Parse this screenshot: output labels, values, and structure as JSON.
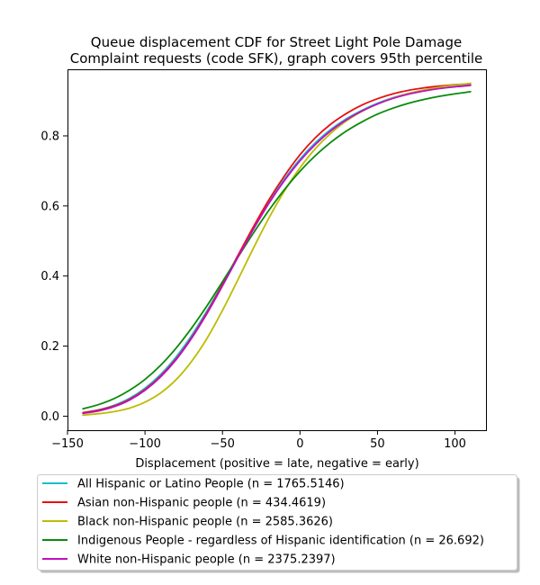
{
  "chart_data": {
    "type": "line",
    "title_lines": [
      "Queue displacement CDF for Street Light Pole Damage",
      "Complaint  requests (code SFK), graph covers 95th percentile"
    ],
    "xlabel": "Displacement (positive = late, negative = early)",
    "ylabel": "",
    "xlim": [
      -150,
      120
    ],
    "ylim": [
      -0.04,
      0.99
    ],
    "xticks": [
      -150,
      -100,
      -50,
      0,
      50,
      100
    ],
    "xtick_labels": [
      "−150",
      "−100",
      "−50",
      "0",
      "50",
      "100"
    ],
    "yticks": [
      0.0,
      0.2,
      0.4,
      0.6,
      0.8
    ],
    "ytick_labels": [
      "0.0",
      "0.2",
      "0.4",
      "0.6",
      "0.8"
    ],
    "grid": false,
    "legend_position": "below",
    "series": [
      {
        "name": "All Hispanic or Latino People (n = 1765.5146)",
        "color": "#17becf",
        "x": [
          -140,
          -130,
          -120,
          -110,
          -100,
          -90,
          -80,
          -70,
          -60,
          -50,
          -40,
          -30,
          -20,
          -10,
          0,
          10,
          20,
          30,
          40,
          50,
          60,
          70,
          80,
          90,
          100,
          110
        ],
        "y": [
          0.01,
          0.018,
          0.031,
          0.051,
          0.08,
          0.119,
          0.169,
          0.23,
          0.301,
          0.378,
          0.458,
          0.537,
          0.611,
          0.677,
          0.734,
          0.781,
          0.819,
          0.849,
          0.873,
          0.893,
          0.909,
          0.921,
          0.93,
          0.937,
          0.942,
          0.946
        ]
      },
      {
        "name": "Asian non-Hispanic people (n = 434.4619)",
        "color": "#e8100f",
        "x": [
          -140,
          -130,
          -120,
          -110,
          -100,
          -90,
          -80,
          -70,
          -60,
          -50,
          -40,
          -30,
          -20,
          -10,
          0,
          10,
          20,
          30,
          40,
          50,
          60,
          70,
          80,
          90,
          100,
          110
        ],
        "y": [
          0.01,
          0.017,
          0.029,
          0.048,
          0.076,
          0.114,
          0.163,
          0.224,
          0.296,
          0.376,
          0.459,
          0.541,
          0.618,
          0.686,
          0.746,
          0.795,
          0.834,
          0.864,
          0.888,
          0.906,
          0.92,
          0.93,
          0.937,
          0.942,
          0.946,
          0.949
        ]
      },
      {
        "name": "Black non-Hispanic people (n = 2585.3626)",
        "color": "#bcbd00",
        "x": [
          -140,
          -130,
          -120,
          -110,
          -100,
          -90,
          -80,
          -70,
          -60,
          -50,
          -40,
          -30,
          -20,
          -10,
          0,
          10,
          20,
          30,
          40,
          50,
          60,
          70,
          80,
          90,
          100,
          110
        ],
        "y": [
          0.003,
          0.007,
          0.013,
          0.023,
          0.04,
          0.066,
          0.104,
          0.156,
          0.222,
          0.302,
          0.39,
          0.48,
          0.566,
          0.643,
          0.709,
          0.764,
          0.808,
          0.843,
          0.87,
          0.891,
          0.908,
          0.921,
          0.931,
          0.939,
          0.945,
          0.95
        ]
      },
      {
        "name": "Indigenous People - regardless of Hispanic identification (n = 26.692)",
        "color": "#0a8a0a",
        "x": [
          -140,
          -130,
          -120,
          -110,
          -100,
          -90,
          -80,
          -70,
          -60,
          -50,
          -40,
          -30,
          -20,
          -10,
          0,
          10,
          20,
          30,
          40,
          50,
          60,
          70,
          80,
          90,
          100,
          110
        ],
        "y": [
          0.021,
          0.033,
          0.05,
          0.074,
          0.105,
          0.145,
          0.194,
          0.251,
          0.315,
          0.384,
          0.454,
          0.523,
          0.588,
          0.647,
          0.699,
          0.744,
          0.782,
          0.814,
          0.84,
          0.862,
          0.879,
          0.893,
          0.904,
          0.913,
          0.92,
          0.926
        ]
      },
      {
        "name": "White non-Hispanic people (n = 2375.2397)",
        "color": "#c010c0",
        "x": [
          -140,
          -130,
          -120,
          -110,
          -100,
          -90,
          -80,
          -70,
          -60,
          -50,
          -40,
          -30,
          -20,
          -10,
          0,
          10,
          20,
          30,
          40,
          50,
          60,
          70,
          80,
          90,
          100,
          110
        ],
        "y": [
          0.008,
          0.015,
          0.027,
          0.046,
          0.074,
          0.112,
          0.161,
          0.222,
          0.293,
          0.372,
          0.454,
          0.534,
          0.608,
          0.673,
          0.729,
          0.776,
          0.815,
          0.846,
          0.871,
          0.891,
          0.907,
          0.919,
          0.928,
          0.935,
          0.94,
          0.944
        ]
      }
    ]
  }
}
